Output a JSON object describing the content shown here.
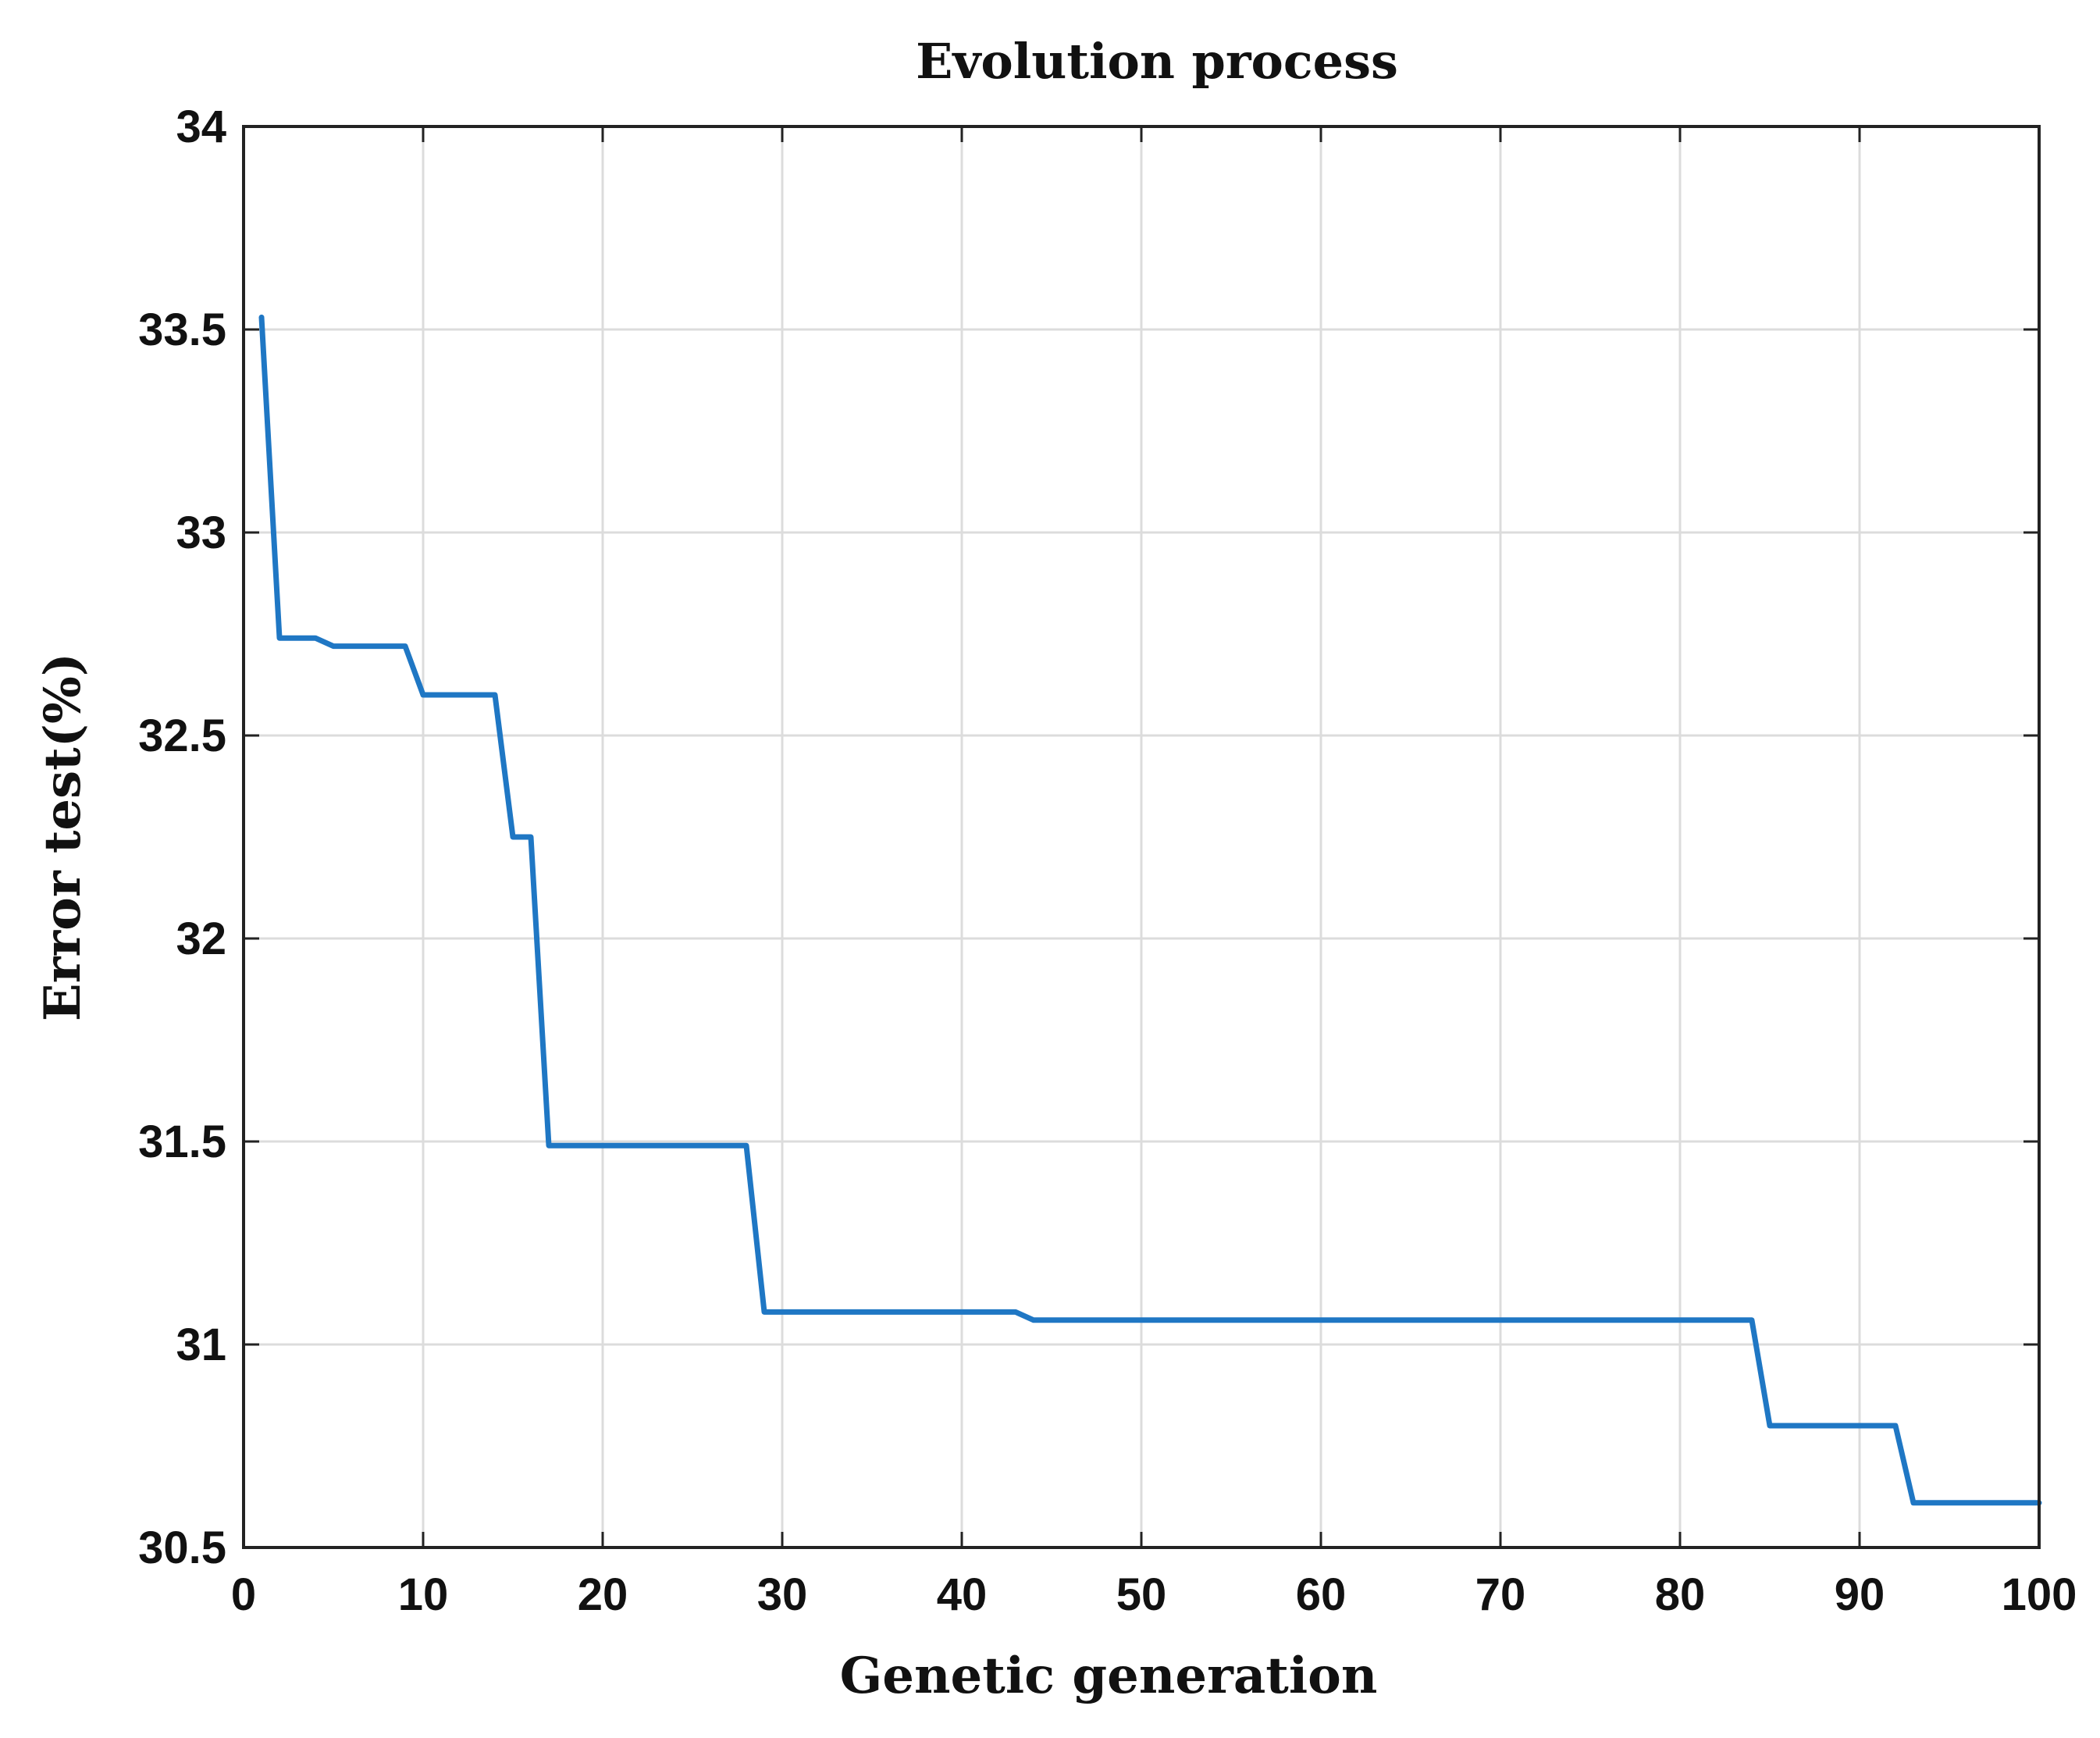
{
  "chart_data": {
    "type": "line",
    "title": "Evolution process",
    "xlabel": "Genetic generation",
    "ylabel": "Error test(%)",
    "xlim": [
      0,
      100
    ],
    "ylim": [
      30.5,
      34
    ],
    "xticks": [
      0,
      10,
      20,
      30,
      40,
      50,
      60,
      70,
      80,
      90,
      100
    ],
    "yticks": [
      30.5,
      31,
      31.5,
      32,
      32.5,
      33,
      33.5,
      34
    ],
    "xtick_labels": [
      "0",
      "10",
      "20",
      "30",
      "40",
      "50",
      "60",
      "70",
      "80",
      "90",
      "100"
    ],
    "ytick_labels": [
      "30.5",
      "31",
      "31.5",
      "32",
      "32.5",
      "33",
      "33.5",
      "34"
    ],
    "grid": true,
    "color": "#1f77c4",
    "series": [
      {
        "name": "Error test",
        "x": [
          1,
          2,
          3,
          4,
          5,
          6,
          7,
          8,
          9,
          10,
          11,
          12,
          13,
          14,
          15,
          16,
          17,
          18,
          19,
          20,
          21,
          22,
          23,
          24,
          25,
          26,
          27,
          28,
          29,
          30,
          31,
          32,
          33,
          34,
          35,
          36,
          37,
          38,
          39,
          40,
          41,
          42,
          43,
          44,
          45,
          50,
          55,
          60,
          65,
          70,
          75,
          80,
          84,
          85,
          86,
          87,
          88,
          89,
          90,
          91,
          92,
          93,
          94,
          95,
          96,
          97,
          98,
          99,
          100
        ],
        "values": [
          33.53,
          32.74,
          32.74,
          32.74,
          32.72,
          32.72,
          32.72,
          32.72,
          32.72,
          32.6,
          32.6,
          32.6,
          32.6,
          32.6,
          32.25,
          32.25,
          31.49,
          31.49,
          31.49,
          31.49,
          31.49,
          31.49,
          31.49,
          31.49,
          31.49,
          31.49,
          31.49,
          31.49,
          31.08,
          31.08,
          31.08,
          31.08,
          31.08,
          31.08,
          31.08,
          31.08,
          31.08,
          31.08,
          31.08,
          31.08,
          31.08,
          31.08,
          31.08,
          31.06,
          31.06,
          31.06,
          31.06,
          31.06,
          31.06,
          31.06,
          31.06,
          31.06,
          31.06,
          30.8,
          30.8,
          30.8,
          30.8,
          30.8,
          30.8,
          30.8,
          30.8,
          30.61,
          30.61,
          30.61,
          30.61,
          30.61,
          30.61,
          30.61,
          30.61
        ]
      }
    ]
  }
}
